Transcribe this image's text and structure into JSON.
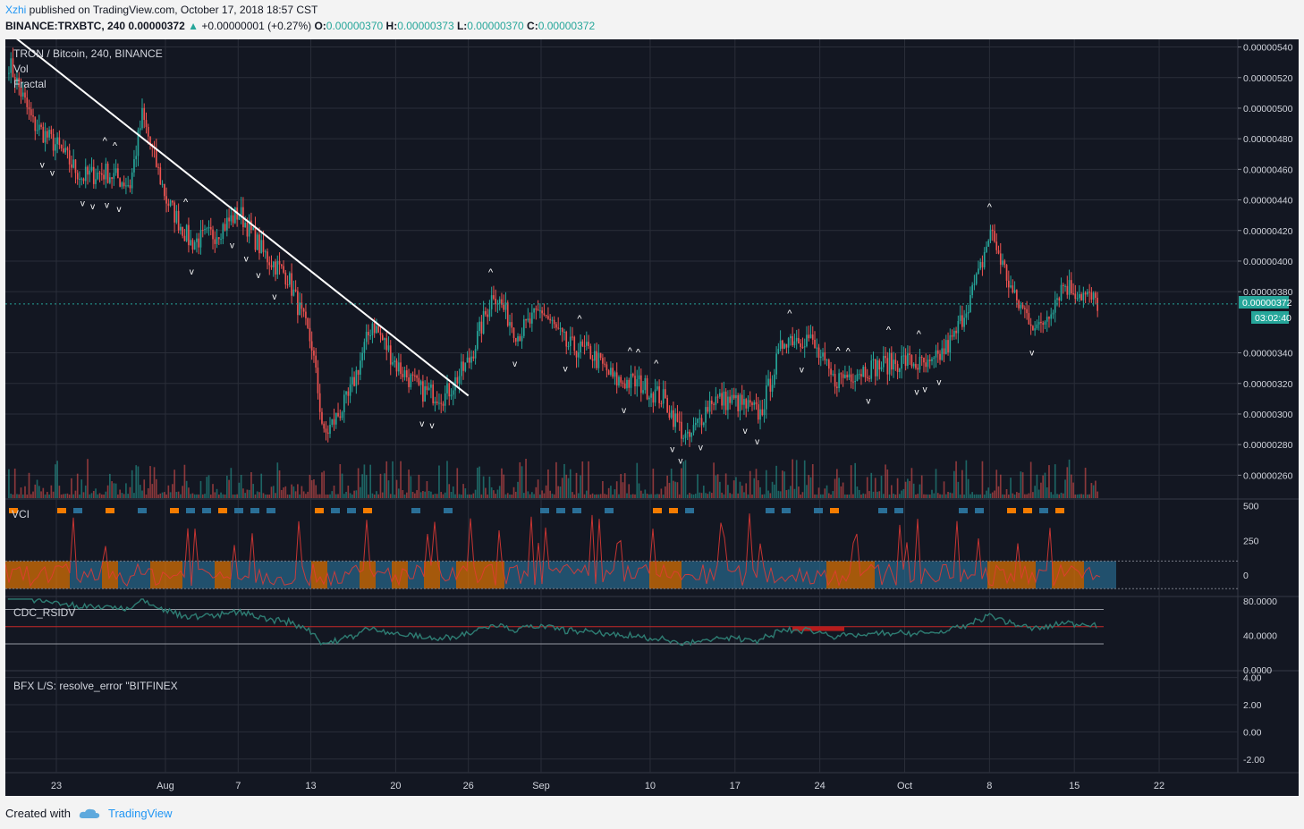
{
  "header": {
    "user": "Xzhi",
    "published_text": " published on TradingView.com, October 17, 2018 18:57 CST",
    "symbol": "BINANCE:TRXBTC, 240",
    "last": "0.00000372",
    "change_arrow": "▲",
    "change": "+0.00000001 (+0.27%)",
    "o_label": "O:",
    "o": "0.00000370",
    "h_label": "H:",
    "h": "0.00000373",
    "l_label": "L:",
    "l": "0.00000370",
    "c_label": "C:",
    "c": "0.00000372"
  },
  "legend": {
    "title": "TRON / Bitcoin, 240, BINANCE",
    "vol": "Vol",
    "fractal": "Fractal"
  },
  "price_badge": "0.00000372",
  "countdown_badge": "03:02:40",
  "indicators": {
    "vci": "VCI",
    "rsidv": "CDC_RSIDV",
    "bfx": "BFX L/S: resolve_error \"BITFINEX"
  },
  "footer": {
    "created_with": "Created with",
    "brand": "TradingView"
  },
  "colors": {
    "background": "#131722",
    "up": "#26a69a",
    "down": "#ef5350",
    "grid": "#2a2e39",
    "axis_text": "#d1d4dc",
    "last_price_badge": "#26a69a",
    "trendline": "#ffffff",
    "vci_orange": "#f57c00",
    "vci_blue": "#2a6f97",
    "rsi_line": "#2e7d73",
    "rsi_red_band": "#b71c1c"
  },
  "chart_data": [
    {
      "type": "candlestick",
      "title": "TRON / Bitcoin, 240, BINANCE",
      "x_tick_labels": [
        "23",
        "Aug",
        "7",
        "13",
        "20",
        "26",
        "Sep",
        "10",
        "17",
        "24",
        "Oct",
        "8",
        "15",
        "22"
      ],
      "x_ticks": [
        "2018-07-23",
        "2018-08-01",
        "2018-08-07",
        "2018-08-13",
        "2018-08-20",
        "2018-08-26",
        "2018-09-01",
        "2018-09-10",
        "2018-09-17",
        "2018-09-24",
        "2018-10-01",
        "2018-10-08",
        "2018-10-15",
        "2018-10-22"
      ],
      "y_tick_labels": [
        "0.00000540",
        "0.00000520",
        "0.00000500",
        "0.00000480",
        "0.00000460",
        "0.00000440",
        "0.00000420",
        "0.00000400",
        "0.00000380",
        "0.00000340",
        "0.00000320",
        "0.00000300",
        "0.00000280",
        "0.00000260"
      ],
      "ylim": [
        2.45e-06,
        5.45e-06
      ],
      "x": [
        "2018-07-19",
        "2018-07-21",
        "2018-07-23",
        "2018-07-25",
        "2018-07-27",
        "2018-07-29",
        "2018-07-30",
        "2018-08-01",
        "2018-08-03",
        "2018-08-05",
        "2018-08-07",
        "2018-08-09",
        "2018-08-11",
        "2018-08-13",
        "2018-08-14",
        "2018-08-16",
        "2018-08-18",
        "2018-08-20",
        "2018-08-22",
        "2018-08-24",
        "2018-08-26",
        "2018-08-28",
        "2018-08-30",
        "2018-09-01",
        "2018-09-03",
        "2018-09-05",
        "2018-09-07",
        "2018-09-09",
        "2018-09-11",
        "2018-09-13",
        "2018-09-15",
        "2018-09-17",
        "2018-09-19",
        "2018-09-21",
        "2018-09-23",
        "2018-09-25",
        "2018-09-27",
        "2018-09-29",
        "2018-10-01",
        "2018-10-03",
        "2018-10-05",
        "2018-10-07",
        "2018-10-08",
        "2018-10-10",
        "2018-10-12",
        "2018-10-14",
        "2018-10-17"
      ],
      "close": [
        5.3e-06,
        4.9e-06,
        4.75e-06,
        4.55e-06,
        4.58e-06,
        4.5e-06,
        4.95e-06,
        4.4e-06,
        4.12e-06,
        4.18e-06,
        4.32e-06,
        4.05e-06,
        3.9e-06,
        3.45e-06,
        2.85e-06,
        3.1e-06,
        3.6e-06,
        3.32e-06,
        3.15e-06,
        3.12e-06,
        3.35e-06,
        3.8e-06,
        3.52e-06,
        3.68e-06,
        3.45e-06,
        3.4e-06,
        3.22e-06,
        3.2e-06,
        3.1e-06,
        2.82e-06,
        3.1e-06,
        3.08e-06,
        3e-06,
        3.5e-06,
        3.5e-06,
        3.22e-06,
        3.28e-06,
        3.32e-06,
        3.35e-06,
        3.3e-06,
        3.5e-06,
        3.9e-06,
        4.2e-06,
        3.75e-06,
        3.55e-06,
        3.85e-06,
        3.72e-06
      ],
      "drawings": {
        "trendline": {
          "from": [
            "2018-07-19",
            5.5e-06
          ],
          "to": [
            "2018-08-26",
            3.12e-06
          ]
        },
        "last_price_line": 3.72e-06
      }
    },
    {
      "type": "bar",
      "title": "Vol",
      "note": "volume bars below price"
    },
    {
      "type": "area",
      "title": "VCI",
      "y_tick_labels": [
        "500",
        "250",
        "0"
      ],
      "ylim": [
        -150,
        550
      ]
    },
    {
      "type": "line",
      "title": "CDC_RSIDV",
      "y_tick_labels": [
        "80.0000",
        "40.0000",
        "0.0000"
      ],
      "levels": [
        70,
        50,
        30
      ],
      "ylim": [
        0,
        85
      ]
    },
    {
      "type": "line",
      "title": "BFX L/S",
      "y_tick_labels": [
        "4.00",
        "2.00",
        "0.00",
        "-2.00"
      ],
      "ylim": [
        -3,
        4.5
      ]
    }
  ]
}
